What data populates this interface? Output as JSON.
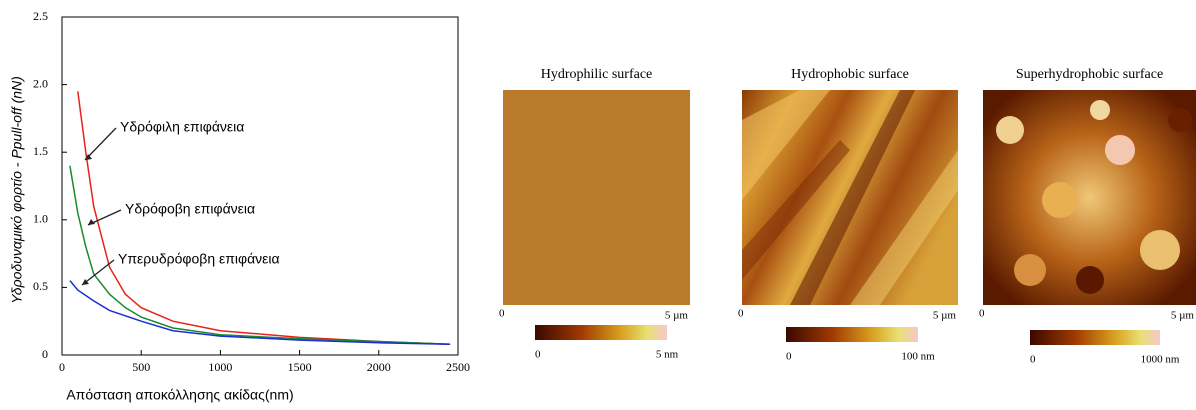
{
  "chart_data": {
    "type": "line",
    "ylabel": "Υδροδυναμικό φορτίο - Ppull-off (nN)",
    "xlabel": "Απόσταση αποκόλλησης ακίδας(nm)",
    "x": [
      50,
      100,
      150,
      200,
      300,
      400,
      500,
      700,
      1000,
      1500,
      2000,
      2450
    ],
    "series": [
      {
        "name": "Υδρόφιλη επιφάνεια",
        "color": "#e8221b",
        "values": [
          null,
          1.95,
          1.5,
          1.1,
          0.65,
          0.45,
          0.35,
          0.25,
          0.18,
          0.13,
          0.1,
          0.08
        ]
      },
      {
        "name": "Υδρόφοβη επιφάνεια",
        "color": "#1a8a2e",
        "values": [
          1.4,
          1.05,
          0.8,
          0.6,
          0.45,
          0.35,
          0.28,
          0.2,
          0.15,
          0.12,
          0.1,
          0.08
        ]
      },
      {
        "name": "Υπερυδρόφοβη επιφάνεια",
        "color": "#1c2fd6",
        "values": [
          0.55,
          0.48,
          0.44,
          0.4,
          0.33,
          0.29,
          0.25,
          0.18,
          0.14,
          0.11,
          0.09,
          0.08
        ]
      }
    ],
    "xlim": [
      0,
      2500
    ],
    "xticks": [
      0,
      500,
      1000,
      1500,
      2000,
      2500
    ],
    "ylim": [
      0,
      2.5
    ],
    "yticks": [
      0,
      0.5,
      {
        "value": 1,
        "label": "1.0"
      },
      1.5,
      {
        "value": 2,
        "label": "2.0"
      },
      2.5
    ]
  },
  "panels": [
    {
      "title": "Hydrophilic  surface",
      "scale_start": "0",
      "scale_end": "5 µm",
      "colorbar_min": "0",
      "colorbar_max": "5 nm"
    },
    {
      "title": "Hydrophobic surface",
      "scale_start": "0",
      "scale_end": "5 µm",
      "colorbar_min": "0",
      "colorbar_max": "100 nm"
    },
    {
      "title": "Superhydrophobic surface",
      "scale_start": "0",
      "scale_end": "5 µm",
      "colorbar_min": "0",
      "colorbar_max": "1000 nm"
    }
  ]
}
